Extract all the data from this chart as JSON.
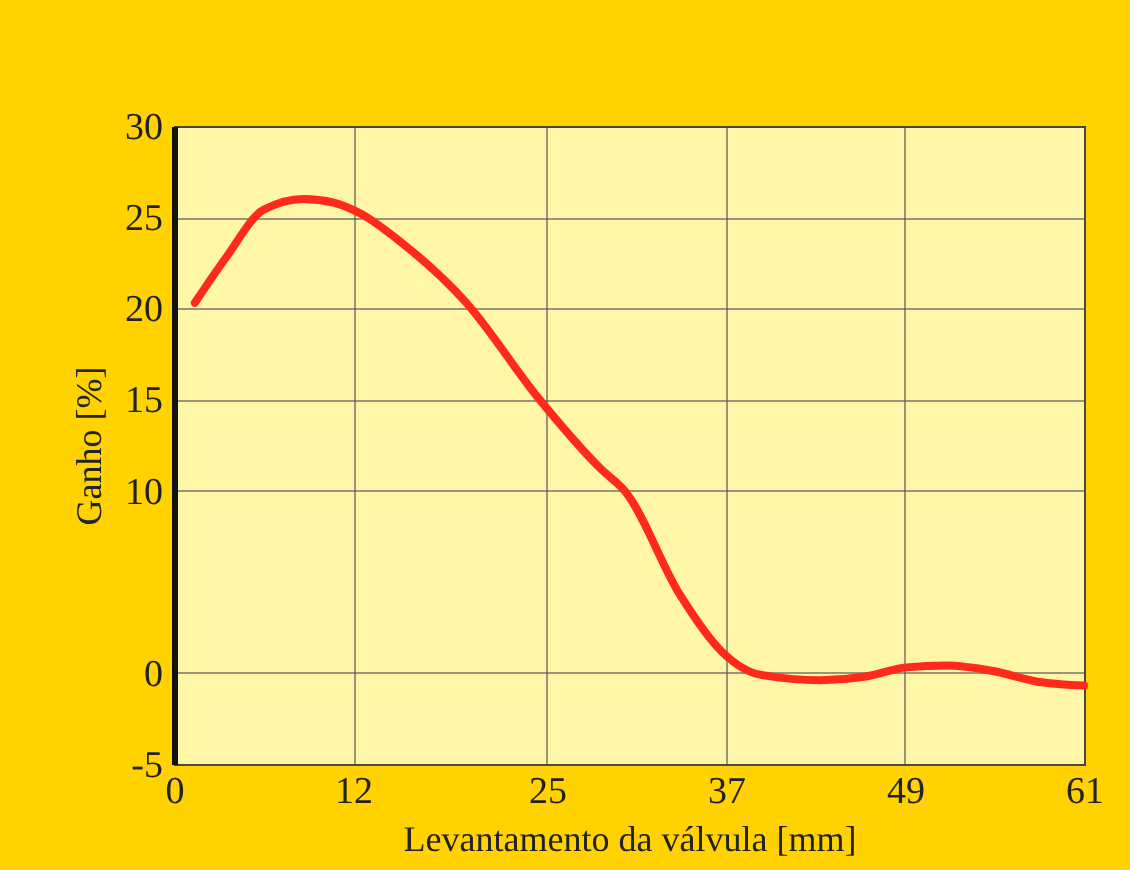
{
  "chart_data": {
    "type": "line",
    "xlabel": "Levantamento da válvula [mm]",
    "ylabel": "Ganho [%]",
    "x": [
      1.4,
      3.5,
      6.0,
      8.7,
      10.7,
      12.5,
      15.1,
      19.6,
      24.4,
      28.6,
      30.3,
      33.9,
      36.8,
      39.3,
      43.3,
      46.4,
      49.1,
      51.8,
      54.9,
      58.0,
      61.0
    ],
    "series": [
      {
        "color": "#ff2a1a",
        "values": [
          20.3,
          22.8,
          25.4,
          26.0,
          25.8,
          25.2,
          23.7,
          20.3,
          15.1,
          11.2,
          9.9,
          4.3,
          1.1,
          -0.1,
          -0.4,
          -0.2,
          0.3,
          0.4,
          0.1,
          -0.5,
          -0.7
        ]
      }
    ],
    "xlim": [
      0,
      61
    ],
    "xticks": [
      0,
      12,
      25,
      37,
      49,
      61
    ],
    "ylim": [
      -5,
      30
    ],
    "yticks": [
      -5,
      0,
      10,
      15,
      20,
      25,
      30
    ],
    "grid": true,
    "marker": "none",
    "line_style": "solid"
  }
}
